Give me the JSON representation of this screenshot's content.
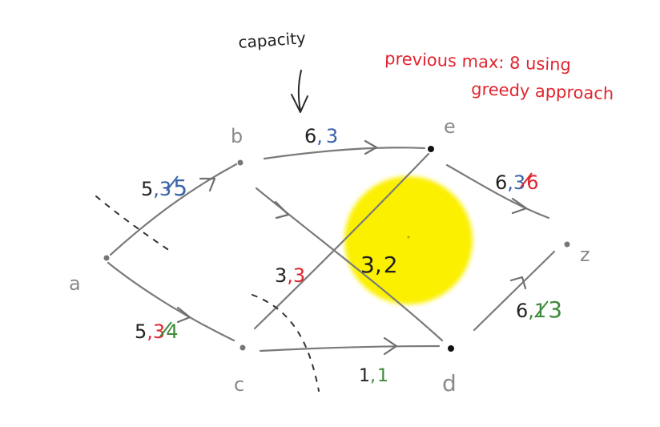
{
  "annotations": {
    "capacity_label": "capacity",
    "previous_max_line1": "previous max: 8 using",
    "previous_max_line2": "greedy approach"
  },
  "nodes": {
    "a": "a",
    "b": "b",
    "c": "c",
    "d": "d",
    "e": "e",
    "z": "z"
  },
  "edges": {
    "ab": {
      "capacity": "5",
      "sep": ",",
      "old_flow": "3",
      "new_flow": "5"
    },
    "ac": {
      "capacity": "5",
      "sep": ",",
      "old_flow": "3",
      "new_flow": "4"
    },
    "be": {
      "capacity": "6",
      "sep": ",",
      "flow": "3"
    },
    "bd": {
      "capacity": "3",
      "sep": ",",
      "flow": "2"
    },
    "ce": {
      "capacity": "3",
      "sep": ",",
      "flow": "3"
    },
    "cd": {
      "capacity": "1",
      "sep": ",",
      "flow": "1"
    },
    "ez": {
      "capacity": "6",
      "sep": ",",
      "old_flow": "3",
      "new_flow": "6"
    },
    "dz": {
      "capacity": "6",
      "sep": ",",
      "old_flow": "1",
      "new_flow": "3"
    }
  },
  "colors": {
    "ink": "#2a2a2a",
    "edge": "#7a7a7a",
    "node_label": "#8a8a8a",
    "red": "#e0252f",
    "blue": "#3b63a8",
    "green": "#3f8a3a",
    "highlight": "#fbf000"
  }
}
